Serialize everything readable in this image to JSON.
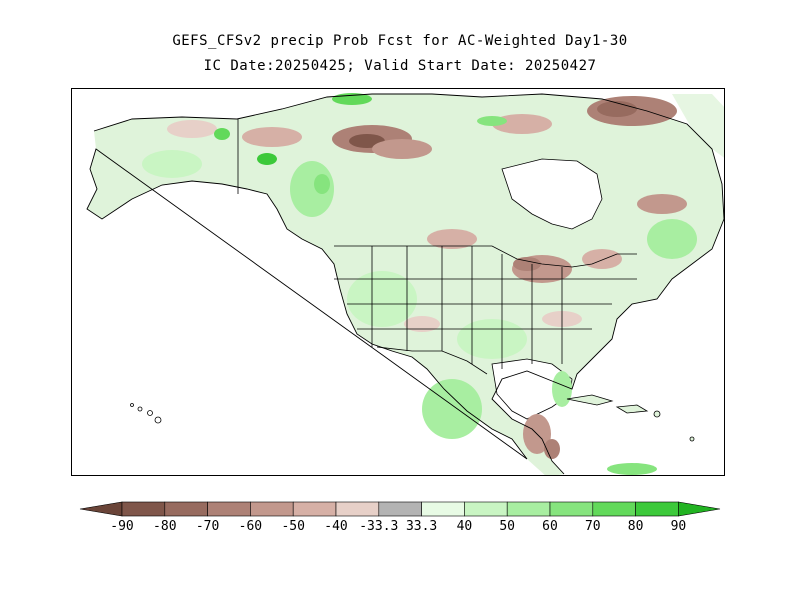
{
  "title": {
    "line1": "GEFS_CFSv2 precip Prob Fcst for AC-Weighted Day1-30",
    "line2": "IC Date:20250425; Valid Start Date: 20250427"
  },
  "map": {
    "region": "North America",
    "ocean_color": "#ffffff",
    "border_color": "#000000"
  },
  "colorbar": {
    "below_colors": [
      "#7f564a",
      "#976b5f",
      "#ad8176",
      "#c2988d",
      "#d6b0a6",
      "#e7d0c8"
    ],
    "below_labels": [
      "-90",
      "-80",
      "-70",
      "-60",
      "-50",
      "-40"
    ],
    "neutral_color": "#b3b3b3",
    "neutral_labels": [
      "-33.3",
      "33.3"
    ],
    "above_colors": [
      "#e8fbe5",
      "#c9f5c3",
      "#a8eea1",
      "#86e47e",
      "#62d95a",
      "#3cc93a"
    ],
    "above_labels": [
      "40",
      "50",
      "60",
      "70",
      "80",
      "90"
    ],
    "low_arrow_color": "#6a4438",
    "high_arrow_color": "#22b322"
  }
}
